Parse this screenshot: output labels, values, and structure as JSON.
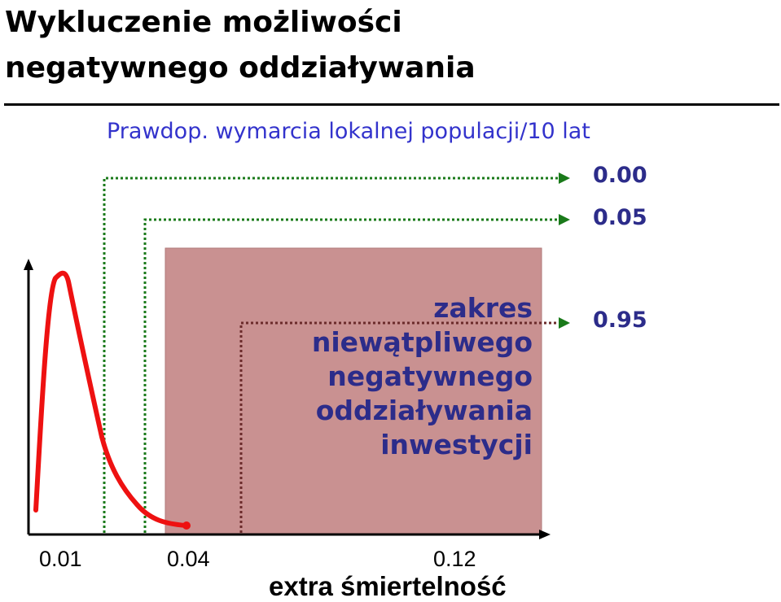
{
  "title": {
    "line1": "Wykluczenie możliwości",
    "line2": "negatywnego oddziaływania"
  },
  "subtitle": "Prawdop. wymarcia lokalnej populacji/10 lat",
  "probabilities": [
    "0.00",
    "0.05",
    "0.95"
  ],
  "region_text": [
    "zakres",
    "niewątpliwego",
    "negatywnego",
    "oddziaływania",
    "inwestycji"
  ],
  "x_ticks": [
    "0.01",
    "0.04",
    "0.12"
  ],
  "x_label": "extra śmiertelność",
  "colors": {
    "curve": "#ee1111",
    "region": "#c99191",
    "connector": "#1a7a1a",
    "subtitle": "#3333cc",
    "labels": "#2c2c8a"
  }
}
